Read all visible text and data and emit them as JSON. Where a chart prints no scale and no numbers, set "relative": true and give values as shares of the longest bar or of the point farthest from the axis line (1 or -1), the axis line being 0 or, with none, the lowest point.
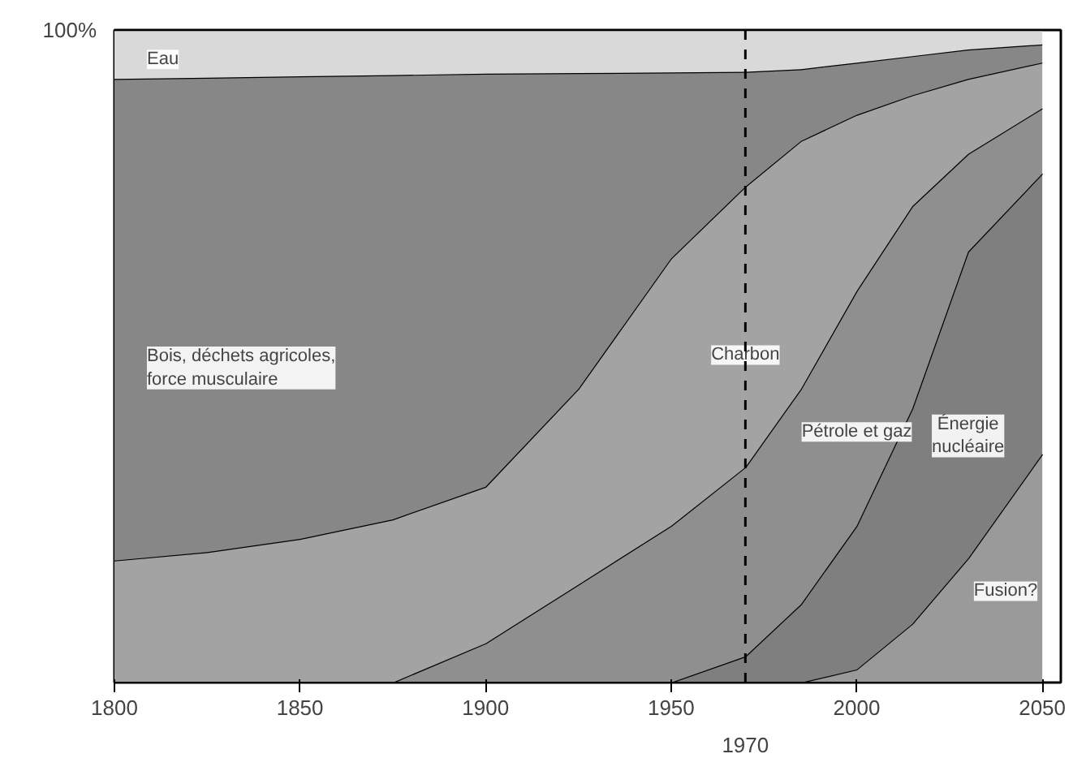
{
  "chart_data": {
    "type": "area",
    "stacked": true,
    "relative": true,
    "x": [
      1800,
      1825,
      1850,
      1875,
      1900,
      1925,
      1950,
      1970,
      1985,
      2000,
      2015,
      2030,
      2050
    ],
    "xlim": [
      1800,
      2055
    ],
    "xticks": [
      1800,
      1850,
      1900,
      1950,
      2000,
      2050
    ],
    "grid": false,
    "series": [
      {
        "name": "Fusion?",
        "color": "#9a9a9a",
        "values": [
          0,
          0,
          0,
          0,
          0,
          0,
          0,
          0,
          0,
          0.02,
          0.09,
          0.19,
          0.35
        ]
      },
      {
        "name": "Énergie\nnucléaire",
        "color": "#7f7f7f",
        "values": [
          0,
          0,
          0,
          0,
          0,
          0,
          0,
          0.04,
          0.12,
          0.22,
          0.33,
          0.47,
          0.43
        ]
      },
      {
        "name": "Pétrole et gaz",
        "color": "#8f8f8f",
        "values": [
          0,
          0,
          0,
          0,
          0.06,
          0.15,
          0.24,
          0.29,
          0.33,
          0.36,
          0.31,
          0.15,
          0.1
        ]
      },
      {
        "name": "Charbon",
        "color": "#a3a3a3",
        "values": [
          0.187,
          0.2,
          0.22,
          0.25,
          0.24,
          0.3,
          0.41,
          0.43,
          0.38,
          0.27,
          0.17,
          0.115,
          0.07
        ]
      },
      {
        "name": "Bois, déchets agricoles,\nforce musculaire",
        "color": "#878787",
        "values": [
          0.738,
          0.727,
          0.709,
          0.681,
          0.633,
          0.484,
          0.285,
          0.176,
          0.11,
          0.08,
          0.06,
          0.045,
          0.028
        ]
      },
      {
        "name": "Eau",
        "color": "#d9d9d9",
        "values": [
          0.075,
          0.073,
          0.071,
          0.069,
          0.067,
          0.066,
          0.065,
          0.064,
          0.06,
          0.05,
          0.04,
          0.03,
          0.022
        ]
      }
    ],
    "ref_lines": [
      {
        "axis": "x",
        "value": 1970,
        "label": "1970",
        "line_style": "dashed",
        "color": "#000000"
      }
    ],
    "annotations": [
      "100%"
    ]
  }
}
